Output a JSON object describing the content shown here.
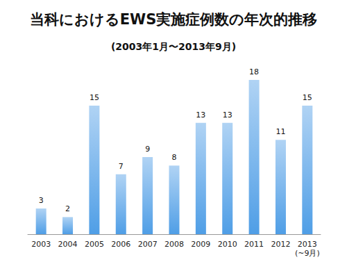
{
  "chart_data": {
    "type": "bar",
    "title": "当科におけるEWS実施症例数の年次的推移",
    "subtitle": "(2003年1月〜2013年9月)",
    "categories": [
      "2003",
      "2004",
      "2005",
      "2006",
      "2007",
      "2008",
      "2009",
      "2010",
      "2011",
      "2012",
      "2013\n(~9月)"
    ],
    "values": [
      3,
      2,
      15,
      7,
      9,
      8,
      13,
      13,
      18,
      11,
      15
    ],
    "color": "#4f9ee6",
    "ylim": [
      0,
      18
    ],
    "grid": false,
    "data_labels": true,
    "tick_labels": "x"
  }
}
